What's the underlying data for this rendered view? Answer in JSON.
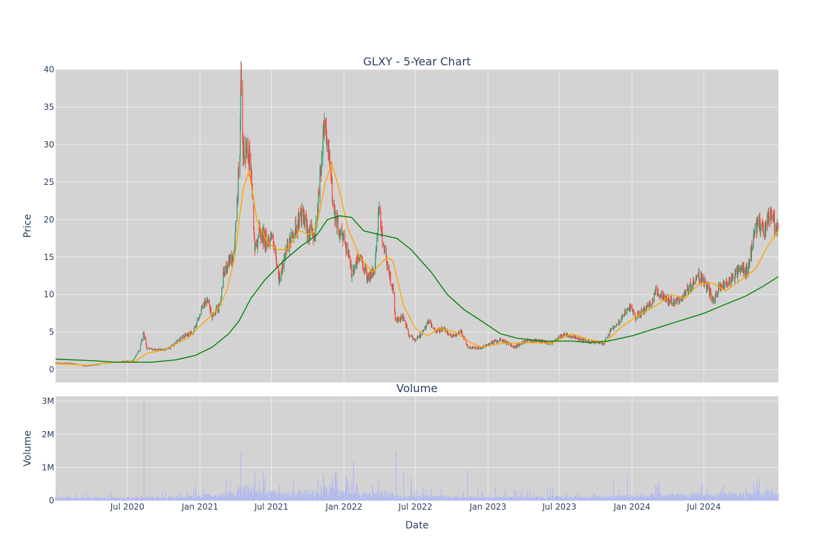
{
  "chart_data": [
    {
      "type": "candlestick",
      "title": "GLXY - 5-Year Chart",
      "ylabel": "Price",
      "xlabel": "",
      "x_range": [
        "2020-01-01",
        "2025-01-06"
      ],
      "ylim": [
        -1.7,
        40
      ],
      "y_ticks": [
        0,
        5,
        10,
        15,
        20,
        25,
        30,
        35,
        40
      ],
      "grid": true,
      "legend": "none",
      "colors": {
        "plot_bg": "#d3d3d3",
        "grid": "#ebebeb",
        "increasing": "#3d9970",
        "decreasing": "#ff4136",
        "ma_short": "#ffa500",
        "ma_long": "#008000"
      },
      "price_path": [
        [
          "2020-01-01",
          0.9
        ],
        [
          "2020-02-15",
          0.85
        ],
        [
          "2020-03-16",
          0.45
        ],
        [
          "2020-04-15",
          0.7
        ],
        [
          "2020-05-15",
          0.95
        ],
        [
          "2020-06-15",
          1.1
        ],
        [
          "2020-07-15",
          1.2
        ],
        [
          "2020-08-01",
          2.7
        ],
        [
          "2020-08-10",
          5.0
        ],
        [
          "2020-08-20",
          2.8
        ],
        [
          "2020-09-15",
          2.6
        ],
        [
          "2020-10-15",
          2.8
        ],
        [
          "2020-11-15",
          4.3
        ],
        [
          "2020-12-15",
          5.0
        ],
        [
          "2021-01-05",
          8.0
        ],
        [
          "2021-01-20",
          9.5
        ],
        [
          "2021-02-01",
          7.0
        ],
        [
          "2021-02-20",
          8.5
        ],
        [
          "2021-03-01",
          12.5
        ],
        [
          "2021-03-15",
          14.5
        ],
        [
          "2021-03-28",
          15.0
        ],
        [
          "2021-04-05",
          22.0
        ],
        [
          "2021-04-12",
          30.0
        ],
        [
          "2021-04-15",
          38.0
        ],
        [
          "2021-04-20",
          28.0
        ],
        [
          "2021-05-01",
          30.0
        ],
        [
          "2021-05-10",
          27.0
        ],
        [
          "2021-05-20",
          16.0
        ],
        [
          "2021-06-01",
          18.5
        ],
        [
          "2021-06-20",
          17.0
        ],
        [
          "2021-07-01",
          18.0
        ],
        [
          "2021-07-20",
          12.0
        ],
        [
          "2021-08-10",
          16.0
        ],
        [
          "2021-09-01",
          19.0
        ],
        [
          "2021-09-15",
          20.5
        ],
        [
          "2021-10-01",
          18.5
        ],
        [
          "2021-10-20",
          18.0
        ],
        [
          "2021-11-05",
          28.0
        ],
        [
          "2021-11-12",
          34.0
        ],
        [
          "2021-11-20",
          30.0
        ],
        [
          "2021-12-05",
          22.0
        ],
        [
          "2021-12-20",
          18.5
        ],
        [
          "2022-01-05",
          17.0
        ],
        [
          "2022-01-20",
          13.0
        ],
        [
          "2022-02-10",
          15.0
        ],
        [
          "2022-03-01",
          12.5
        ],
        [
          "2022-03-20",
          13.0
        ],
        [
          "2022-03-30",
          21.0
        ],
        [
          "2022-04-10",
          17.0
        ],
        [
          "2022-04-25",
          13.0
        ],
        [
          "2022-05-05",
          10.5
        ],
        [
          "2022-05-12",
          6.5
        ],
        [
          "2022-06-01",
          7.0
        ],
        [
          "2022-06-15",
          4.5
        ],
        [
          "2022-07-01",
          4.0
        ],
        [
          "2022-07-20",
          5.0
        ],
        [
          "2022-08-05",
          6.5
        ],
        [
          "2022-08-20",
          5.0
        ],
        [
          "2022-09-10",
          5.5
        ],
        [
          "2022-10-01",
          4.5
        ],
        [
          "2022-10-25",
          5.0
        ],
        [
          "2022-11-10",
          3.0
        ],
        [
          "2022-12-15",
          2.8
        ],
        [
          "2023-01-05",
          3.5
        ],
        [
          "2023-02-01",
          4.0
        ],
        [
          "2023-03-10",
          3.0
        ],
        [
          "2023-04-10",
          4.0
        ],
        [
          "2023-05-10",
          3.8
        ],
        [
          "2023-06-10",
          3.5
        ],
        [
          "2023-07-15",
          4.8
        ],
        [
          "2023-08-20",
          4.0
        ],
        [
          "2023-09-15",
          3.7
        ],
        [
          "2023-10-20",
          3.5
        ],
        [
          "2023-11-10",
          5.5
        ],
        [
          "2023-12-01",
          6.5
        ],
        [
          "2023-12-25",
          8.5
        ],
        [
          "2024-01-10",
          7.0
        ],
        [
          "2024-02-15",
          8.5
        ],
        [
          "2024-03-01",
          10.5
        ],
        [
          "2024-03-25",
          9.5
        ],
        [
          "2024-04-20",
          9.0
        ],
        [
          "2024-05-15",
          10.0
        ],
        [
          "2024-06-01",
          11.5
        ],
        [
          "2024-06-20",
          12.5
        ],
        [
          "2024-07-10",
          11.0
        ],
        [
          "2024-07-25",
          9.0
        ],
        [
          "2024-08-10",
          11.0
        ],
        [
          "2024-09-10",
          12.0
        ],
        [
          "2024-10-01",
          13.5
        ],
        [
          "2024-10-20",
          13.0
        ],
        [
          "2024-11-05",
          17.5
        ],
        [
          "2024-11-15",
          20.0
        ],
        [
          "2024-12-01",
          18.0
        ],
        [
          "2024-12-15",
          21.0
        ],
        [
          "2025-01-06",
          18.0
        ]
      ],
      "ma_short": [
        [
          "2020-01-01",
          0.8
        ],
        [
          "2020-03-20",
          0.6
        ],
        [
          "2020-06-01",
          1.0
        ],
        [
          "2020-07-20",
          1.1
        ],
        [
          "2020-08-20",
          2.2
        ],
        [
          "2020-10-01",
          2.6
        ],
        [
          "2020-12-01",
          4.2
        ],
        [
          "2021-01-15",
          6.5
        ],
        [
          "2021-02-15",
          8.0
        ],
        [
          "2021-03-10",
          10.5
        ],
        [
          "2021-03-30",
          15.0
        ],
        [
          "2021-04-20",
          24.0
        ],
        [
          "2021-05-05",
          26.5
        ],
        [
          "2021-05-25",
          20.0
        ],
        [
          "2021-06-20",
          17.0
        ],
        [
          "2021-07-15",
          16.0
        ],
        [
          "2021-08-10",
          16.0
        ],
        [
          "2021-09-10",
          18.5
        ],
        [
          "2021-10-10",
          18.0
        ],
        [
          "2021-10-25",
          19.5
        ],
        [
          "2021-11-15",
          25.0
        ],
        [
          "2021-12-01",
          27.5
        ],
        [
          "2021-12-20",
          24.0
        ],
        [
          "2022-01-10",
          19.0
        ],
        [
          "2022-02-10",
          15.0
        ],
        [
          "2022-03-15",
          13.0
        ],
        [
          "2022-04-20",
          15.0
        ],
        [
          "2022-05-05",
          14.5
        ],
        [
          "2022-06-01",
          8.5
        ],
        [
          "2022-07-01",
          5.5
        ],
        [
          "2022-08-01",
          4.5
        ],
        [
          "2022-09-01",
          5.5
        ],
        [
          "2022-10-10",
          5.0
        ],
        [
          "2022-11-20",
          3.5
        ],
        [
          "2022-12-20",
          3.0
        ],
        [
          "2023-02-01",
          3.5
        ],
        [
          "2023-05-01",
          3.6
        ],
        [
          "2023-06-10",
          3.5
        ],
        [
          "2023-08-01",
          4.8
        ],
        [
          "2023-09-15",
          4.0
        ],
        [
          "2023-10-25",
          3.6
        ],
        [
          "2023-12-01",
          5.5
        ],
        [
          "2024-01-15",
          7.2
        ],
        [
          "2024-03-01",
          8.5
        ],
        [
          "2024-04-10",
          10.0
        ],
        [
          "2024-05-15",
          9.5
        ],
        [
          "2024-06-20",
          11.5
        ],
        [
          "2024-07-25",
          11.5
        ],
        [
          "2024-08-25",
          10.5
        ],
        [
          "2024-10-05",
          12.0
        ],
        [
          "2024-11-10",
          13.5
        ],
        [
          "2024-12-10",
          16.5
        ],
        [
          "2025-01-06",
          18.5
        ]
      ],
      "ma_long": [
        [
          "2020-01-01",
          1.4
        ],
        [
          "2020-04-01",
          1.2
        ],
        [
          "2020-06-01",
          1.0
        ],
        [
          "2020-09-01",
          1.0
        ],
        [
          "2020-11-01",
          1.3
        ],
        [
          "2020-12-20",
          1.9
        ],
        [
          "2021-02-01",
          3.0
        ],
        [
          "2021-03-15",
          4.8
        ],
        [
          "2021-04-10",
          6.5
        ],
        [
          "2021-05-10",
          9.5
        ],
        [
          "2021-06-15",
          12.0
        ],
        [
          "2021-08-01",
          14.5
        ],
        [
          "2021-09-15",
          16.5
        ],
        [
          "2021-10-25",
          18.0
        ],
        [
          "2021-11-20",
          20.0
        ],
        [
          "2021-12-20",
          20.5
        ],
        [
          "2022-01-20",
          20.3
        ],
        [
          "2022-02-20",
          18.5
        ],
        [
          "2022-04-01",
          18.0
        ],
        [
          "2022-05-15",
          17.5
        ],
        [
          "2022-06-20",
          16.0
        ],
        [
          "2022-08-10",
          13.0
        ],
        [
          "2022-09-20",
          10.0
        ],
        [
          "2022-11-01",
          8.0
        ],
        [
          "2022-12-15",
          6.5
        ],
        [
          "2023-02-01",
          4.8
        ],
        [
          "2023-03-15",
          4.2
        ],
        [
          "2023-05-15",
          3.8
        ],
        [
          "2023-08-01",
          3.8
        ],
        [
          "2023-09-15",
          3.6
        ],
        [
          "2023-11-01",
          3.8
        ],
        [
          "2024-01-01",
          4.5
        ],
        [
          "2024-03-01",
          5.5
        ],
        [
          "2024-05-01",
          6.5
        ],
        [
          "2024-07-01",
          7.5
        ],
        [
          "2024-08-15",
          8.5
        ],
        [
          "2024-10-15",
          9.8
        ],
        [
          "2024-12-01",
          11.2
        ],
        [
          "2025-01-06",
          12.4
        ]
      ]
    },
    {
      "type": "bar",
      "title": "Volume",
      "ylabel": "Volume",
      "xlabel": "Date",
      "x_range": [
        "2020-01-01",
        "2025-01-06"
      ],
      "ylim": [
        0,
        3150000
      ],
      "y_ticks": [
        0,
        1000000,
        2000000,
        3000000
      ],
      "y_tick_labels": [
        "0",
        "1M",
        "2M",
        "3M"
      ],
      "x_ticks": [
        "2020-07-01",
        "2021-01-01",
        "2021-07-01",
        "2022-01-01",
        "2022-07-01",
        "2023-01-01",
        "2023-07-01",
        "2024-01-01",
        "2024-07-01"
      ],
      "x_tick_labels": [
        "Jul 2020",
        "Jan 2021",
        "Jul 2021",
        "Jan 2022",
        "Jul 2022",
        "Jan 2023",
        "Jul 2023",
        "Jan 2024",
        "Jul 2024"
      ],
      "grid": true,
      "legend": "none",
      "colors": {
        "plot_bg": "#d3d3d3",
        "grid": "#ebebeb",
        "bar": "#b0b8f0"
      },
      "volume_spikes": [
        [
          "2020-08-12",
          3000000
        ],
        [
          "2020-09-05",
          800000
        ],
        [
          "2020-11-15",
          850000
        ],
        [
          "2021-01-10",
          700000
        ],
        [
          "2021-03-20",
          700000
        ],
        [
          "2021-04-10",
          1000000
        ],
        [
          "2021-04-15",
          1500000
        ],
        [
          "2021-05-20",
          900000
        ],
        [
          "2021-06-10",
          900000
        ],
        [
          "2021-11-10",
          800000
        ],
        [
          "2021-12-15",
          600000
        ],
        [
          "2022-01-25",
          1200000
        ],
        [
          "2022-03-30",
          600000
        ],
        [
          "2022-05-13",
          1500000
        ],
        [
          "2022-06-01",
          850000
        ],
        [
          "2022-06-20",
          700000
        ],
        [
          "2022-10-15",
          600000
        ],
        [
          "2022-11-10",
          900000
        ],
        [
          "2023-01-20",
          400000
        ],
        [
          "2023-06-01",
          350000
        ],
        [
          "2023-11-15",
          650000
        ],
        [
          "2023-12-20",
          800000
        ],
        [
          "2024-03-05",
          450000
        ],
        [
          "2024-04-20",
          550000
        ],
        [
          "2024-07-10",
          400000
        ],
        [
          "2024-11-12",
          600000
        ],
        [
          "2024-12-05",
          450000
        ]
      ]
    }
  ]
}
